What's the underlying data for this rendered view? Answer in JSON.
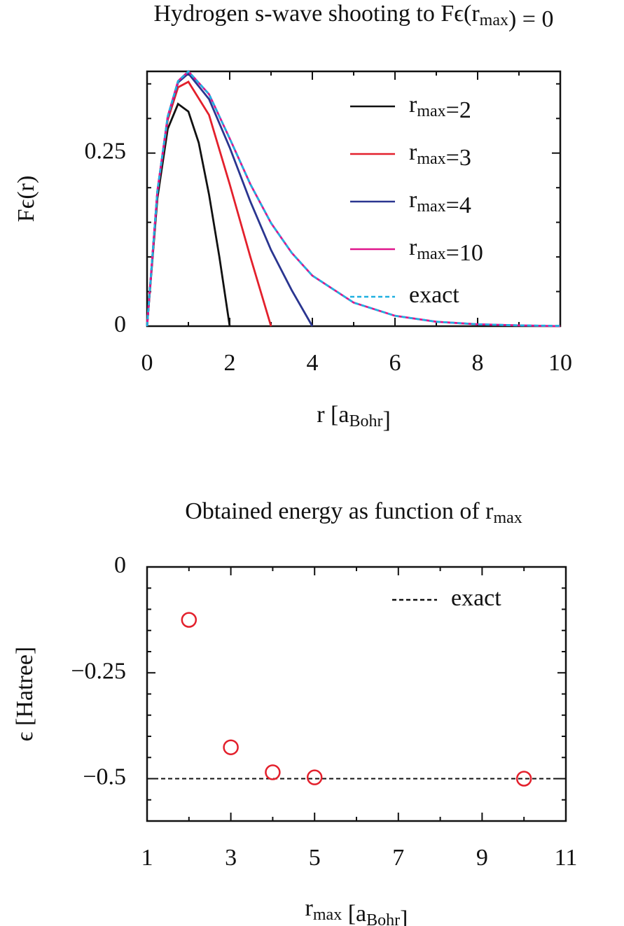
{
  "chart_data": [
    {
      "type": "line",
      "title": "Hydrogen s-wave shooting to Fϵ(rmax) = 0",
      "xlabel": "r [aBohr]",
      "ylabel": "Fϵ(r)",
      "xlim": [
        0,
        10
      ],
      "ylim": [
        0,
        0.368
      ],
      "xticks": [
        0,
        2,
        4,
        6,
        8,
        10
      ],
      "xminorticks": [
        1,
        3,
        5,
        7,
        9
      ],
      "yticks": [
        0,
        0.25
      ],
      "yminorticks": [
        0.05,
        0.1,
        0.15,
        0.2,
        0.3,
        0.35
      ],
      "series": [
        {
          "name": "rmax=2",
          "color": "#111111",
          "x": [
            0,
            0.25,
            0.5,
            0.75,
            1,
            1.25,
            1.5,
            1.75,
            2
          ],
          "values": [
            0,
            0.185,
            0.285,
            0.321,
            0.31,
            0.265,
            0.19,
            0.1,
            0
          ]
        },
        {
          "name": "rmax=3",
          "color": "#e3202c",
          "x": [
            0,
            0.25,
            0.5,
            0.75,
            1,
            1.5,
            2,
            2.5,
            3
          ],
          "values": [
            0,
            0.194,
            0.298,
            0.345,
            0.353,
            0.305,
            0.205,
            0.1,
            0
          ]
        },
        {
          "name": "rmax=4",
          "color": "#2a3590",
          "x": [
            0,
            0.25,
            0.5,
            0.75,
            1,
            1.5,
            2,
            2.5,
            3,
            3.5,
            4
          ],
          "values": [
            0,
            0.195,
            0.302,
            0.352,
            0.365,
            0.328,
            0.258,
            0.18,
            0.11,
            0.052,
            0
          ]
        },
        {
          "name": "rmax=10",
          "color": "#e0168c",
          "x": [
            0,
            0.25,
            0.5,
            0.75,
            1,
            1.5,
            2,
            2.5,
            3,
            3.5,
            4,
            5,
            6,
            7,
            8,
            9,
            10
          ],
          "values": [
            0,
            0.195,
            0.303,
            0.354,
            0.368,
            0.335,
            0.271,
            0.205,
            0.149,
            0.106,
            0.073,
            0.034,
            0.015,
            0.0064,
            0.0027,
            0.0011,
            0
          ]
        },
        {
          "name": "exact",
          "color": "#1fb0e0",
          "dash": true,
          "x": [
            0,
            0.25,
            0.5,
            0.75,
            1,
            1.5,
            2,
            2.5,
            3,
            3.5,
            4,
            5,
            6,
            7,
            8,
            9,
            10
          ],
          "values": [
            0,
            0.195,
            0.303,
            0.354,
            0.368,
            0.335,
            0.271,
            0.205,
            0.149,
            0.106,
            0.073,
            0.034,
            0.015,
            0.0064,
            0.0027,
            0.0011,
            0.00045
          ]
        }
      ]
    },
    {
      "type": "scatter",
      "title": "Obtained energy as function of rmax",
      "xlabel": "rmax [aBohr]",
      "ylabel": "ϵ [Hatree]",
      "xlim": [
        1,
        11
      ],
      "ylim": [
        -0.6,
        0
      ],
      "xticks": [
        1,
        3,
        5,
        7,
        9,
        11
      ],
      "xminorticks": [
        2,
        4,
        6,
        8,
        10
      ],
      "yticks": [
        0,
        {
          "value": -0.25,
          "label": "−0.25"
        },
        {
          "value": -0.5,
          "label": "−0.5"
        }
      ],
      "yminorticks": [
        -0.05,
        -0.1,
        -0.15,
        -0.2,
        -0.3,
        -0.35,
        -0.4,
        -0.45,
        -0.55
      ],
      "series": [
        {
          "color": "#e3202c",
          "x": [
            2,
            3,
            4,
            5,
            10
          ],
          "values": [
            -0.125,
            -0.426,
            -0.485,
            -0.497,
            -0.5
          ]
        }
      ],
      "reference_lines": [
        {
          "name": "exact",
          "value": -0.5,
          "color": "#111111",
          "dash": true
        }
      ]
    }
  ]
}
